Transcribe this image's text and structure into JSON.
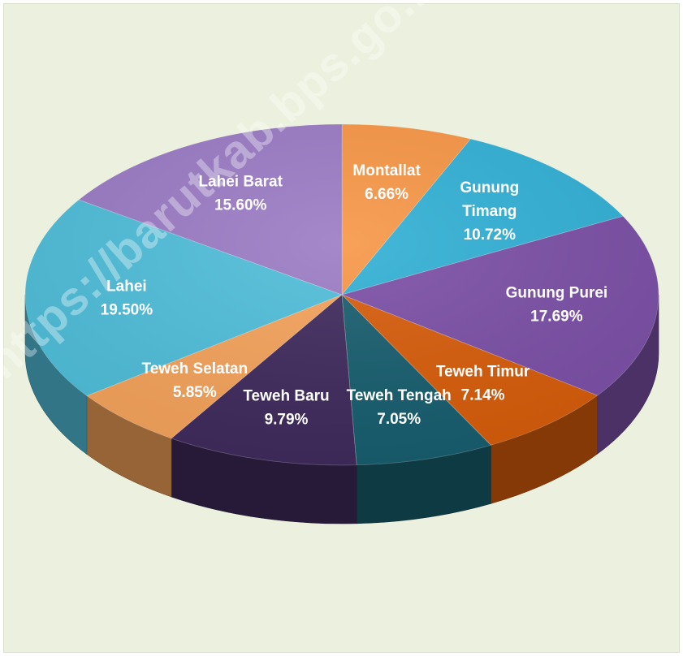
{
  "chart_data": {
    "type": "pie",
    "title": "",
    "slices": [
      {
        "label": "Montallat",
        "value": 6.66,
        "display": "6.66%",
        "color": "#f79646"
      },
      {
        "label": "Gunung Timang",
        "value": 10.72,
        "display": "10.72%",
        "color": "#31b0d5"
      },
      {
        "label": "Gunung Purei",
        "value": 17.69,
        "display": "17.69%",
        "color": "#7b4fa6"
      },
      {
        "label": "Teweh Timur",
        "value": 7.14,
        "display": "7.14%",
        "color": "#d65c0a"
      },
      {
        "label": "Teweh Tengah",
        "value": 7.05,
        "display": "7.05%",
        "color": "#175d6e"
      },
      {
        "label": "Teweh Baru",
        "value": 9.79,
        "display": "9.79%",
        "color": "#3f2a5c"
      },
      {
        "label": "Teweh Selatan",
        "value": 5.85,
        "display": "5.85%",
        "color": "#f4a25b"
      },
      {
        "label": "Lahei",
        "value": 19.5,
        "display": "19.50%",
        "color": "#4fbdd9"
      },
      {
        "label": "Lahei Barat",
        "value": 15.6,
        "display": "15.60%",
        "color": "#9a7bc4"
      }
    ],
    "data_labels": "inside",
    "legend": "none"
  },
  "watermark": {
    "text": "https://barutkab.bps.go.id"
  }
}
